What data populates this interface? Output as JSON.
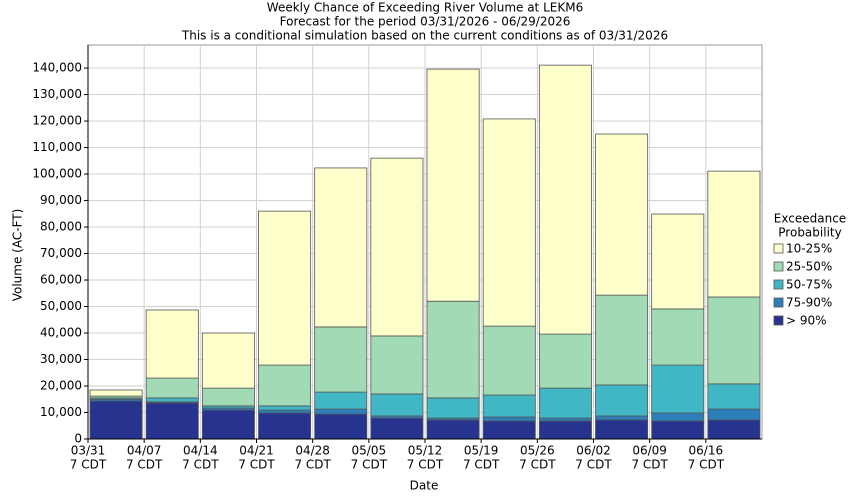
{
  "chart_data": {
    "type": "stacked_bar",
    "title": "Weekly Chance of Exceeding River Volume at LEKM6",
    "subtitle": "Forecast for the period 03/31/2026 - 06/29/2026",
    "note": "This is a conditional simulation based on the current conditions as of 03/31/2026",
    "x_label": "Date",
    "y_label": "Volume (AC-FT)",
    "categories": [
      "03/31",
      "04/07",
      "04/14",
      "04/21",
      "04/28",
      "05/05",
      "05/12",
      "05/19",
      "05/26",
      "06/02",
      "06/09",
      "06/16"
    ],
    "category_sublabel": "7 CDT",
    "legend_title": [
      "Exceedance",
      "Probability"
    ],
    "legend_position": "right",
    "grid": true,
    "ylim": [
      0,
      148700
    ],
    "yticks": [
      0,
      {
        "value": 10000,
        "label": "10,000"
      },
      {
        "value": 20000,
        "label": "20,000"
      },
      {
        "value": 30000,
        "label": "30,000"
      },
      {
        "value": 40000,
        "label": "40,000"
      },
      {
        "value": 50000,
        "label": "50,000"
      },
      {
        "value": 60000,
        "label": "60,000"
      },
      {
        "value": 70000,
        "label": "70,000"
      },
      {
        "value": 80000,
        "label": "80,000"
      },
      {
        "value": 90000,
        "label": "90,000"
      },
      {
        "value": 100000,
        "label": "100,000"
      },
      {
        "value": 110000,
        "label": "110,000"
      },
      {
        "value": 120000,
        "label": "120,000"
      },
      {
        "value": 130000,
        "label": "130,000"
      },
      {
        "value": 140000,
        "label": "140,000"
      }
    ],
    "series": [
      {
        "name": "> 90%",
        "color": "#27348f",
        "values": [
          14300,
          13600,
          10900,
          9800,
          9400,
          7900,
          7200,
          6800,
          6800,
          7200,
          6800,
          7200
        ]
      },
      {
        "name": "75-90%",
        "color": "#2c7fb8",
        "values": [
          700,
          400,
          800,
          1100,
          1900,
          800,
          700,
          1500,
          1100,
          1500,
          3000,
          4100
        ]
      },
      {
        "name": "50-75%",
        "color": "#41b6c4",
        "values": [
          500,
          1500,
          800,
          1600,
          6400,
          8300,
          7600,
          8300,
          11300,
          11700,
          18100,
          9500
        ]
      },
      {
        "name": "25-50%",
        "color": "#a1dab4",
        "values": [
          700,
          7500,
          6700,
          15400,
          24600,
          21900,
          36500,
          26000,
          20400,
          33900,
          21200,
          32800
        ]
      },
      {
        "name": "10-25%",
        "color": "#ffffcc",
        "values": [
          2300,
          25700,
          20800,
          58100,
          60000,
          67100,
          87600,
          78200,
          101500,
          60800,
          35800,
          47500
        ]
      }
    ]
  }
}
